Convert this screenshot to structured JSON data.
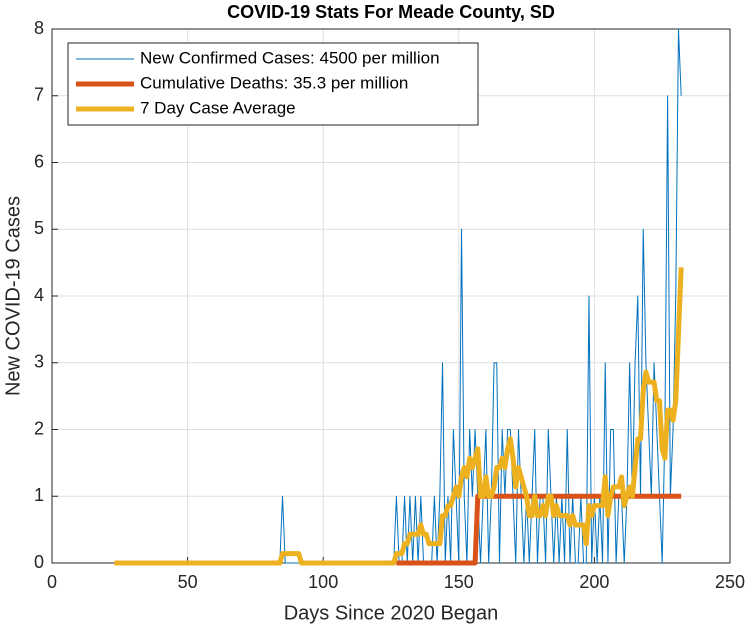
{
  "chart_data": {
    "type": "line",
    "title": "COVID-19 Stats For Meade County, SD",
    "x_label": "Days Since 2020 Began",
    "y_label": "New COVID-19 Cases",
    "x": [
      23,
      24,
      25,
      26,
      27,
      28,
      29,
      30,
      31,
      32,
      33,
      34,
      35,
      36,
      37,
      38,
      39,
      40,
      41,
      42,
      43,
      44,
      45,
      46,
      47,
      48,
      49,
      50,
      51,
      52,
      53,
      54,
      55,
      56,
      57,
      58,
      59,
      60,
      61,
      62,
      63,
      64,
      65,
      66,
      67,
      68,
      69,
      70,
      71,
      72,
      73,
      74,
      75,
      76,
      77,
      78,
      79,
      80,
      81,
      82,
      83,
      84,
      85,
      86,
      87,
      88,
      89,
      90,
      91,
      92,
      93,
      94,
      95,
      96,
      97,
      98,
      99,
      100,
      101,
      102,
      103,
      104,
      105,
      106,
      107,
      108,
      109,
      110,
      111,
      112,
      113,
      114,
      115,
      116,
      117,
      118,
      119,
      120,
      121,
      122,
      123,
      124,
      125,
      126,
      127,
      128,
      129,
      130,
      131,
      132,
      133,
      134,
      135,
      136,
      137,
      138,
      139,
      140,
      141,
      142,
      143,
      144,
      145,
      146,
      147,
      148,
      149,
      150,
      151,
      152,
      153,
      154,
      155,
      156,
      157,
      158,
      159,
      160,
      161,
      162,
      163,
      164,
      165,
      166,
      167,
      168,
      169,
      170,
      171,
      172,
      173,
      174,
      175,
      176,
      177,
      178,
      179,
      180,
      181,
      182,
      183,
      184,
      185,
      186,
      187,
      188,
      189,
      190,
      191,
      192,
      193,
      194,
      195,
      196,
      197,
      198,
      199,
      200,
      201,
      202,
      203,
      204,
      205,
      206,
      207,
      208,
      209,
      210,
      211,
      212,
      213,
      214,
      215,
      216,
      217,
      218,
      219,
      220,
      221,
      222,
      223,
      224,
      225,
      226,
      227,
      228,
      229,
      230,
      231,
      232
    ],
    "series": [
      {
        "name": "New Confirmed Cases: 4500 per million",
        "color": "#0072bd",
        "width": 1,
        "values": [
          0,
          0,
          0,
          0,
          0,
          0,
          0,
          0,
          0,
          0,
          0,
          0,
          0,
          0,
          0,
          0,
          0,
          0,
          0,
          0,
          0,
          0,
          0,
          0,
          0,
          0,
          0,
          0,
          0,
          0,
          0,
          0,
          0,
          0,
          0,
          0,
          0,
          0,
          0,
          0,
          0,
          0,
          0,
          0,
          0,
          0,
          0,
          0,
          0,
          0,
          0,
          0,
          0,
          0,
          0,
          0,
          0,
          0,
          0,
          0,
          0,
          0,
          1,
          0,
          0,
          0,
          0,
          0,
          0,
          0,
          0,
          0,
          0,
          0,
          0,
          0,
          0,
          0,
          0,
          0,
          0,
          0,
          0,
          0,
          0,
          0,
          0,
          0,
          0,
          0,
          0,
          0,
          0,
          0,
          0,
          0,
          0,
          0,
          0,
          0,
          0,
          0,
          0,
          0,
          1,
          0,
          0,
          1,
          0,
          1,
          0,
          1,
          0,
          1,
          0,
          0,
          0,
          0,
          1,
          0,
          1,
          3,
          0,
          1,
          0,
          2,
          1,
          0,
          5,
          1,
          0,
          2,
          1,
          2,
          1,
          0,
          1,
          2,
          0,
          1,
          3,
          3,
          0,
          2,
          1,
          2,
          2,
          1,
          0,
          2,
          1,
          0,
          1,
          0,
          1,
          2,
          0,
          1,
          1,
          0,
          2,
          1,
          0,
          1,
          0,
          1,
          0,
          2,
          0,
          1,
          0,
          0,
          1,
          0,
          0,
          4,
          0,
          1,
          0,
          1,
          0,
          3,
          0,
          2,
          2,
          0,
          1,
          1,
          0,
          1,
          3,
          1,
          3,
          4,
          1,
          5,
          3,
          2,
          1,
          3,
          2,
          1,
          0,
          2,
          7,
          1,
          2,
          4,
          8,
          7
        ]
      },
      {
        "name": "Cumulative Deaths: 35.3 per million",
        "color": "#d95319",
        "width": 5,
        "values": [
          null,
          null,
          null,
          null,
          null,
          null,
          null,
          null,
          null,
          null,
          null,
          null,
          null,
          null,
          null,
          null,
          null,
          null,
          null,
          null,
          null,
          null,
          null,
          null,
          null,
          null,
          null,
          null,
          null,
          null,
          null,
          null,
          null,
          null,
          null,
          null,
          null,
          null,
          null,
          null,
          null,
          null,
          null,
          null,
          null,
          null,
          null,
          null,
          null,
          null,
          null,
          null,
          null,
          null,
          null,
          null,
          null,
          null,
          null,
          null,
          null,
          null,
          null,
          null,
          null,
          null,
          null,
          null,
          null,
          null,
          null,
          null,
          null,
          null,
          null,
          null,
          null,
          null,
          null,
          null,
          null,
          null,
          null,
          null,
          null,
          null,
          null,
          null,
          null,
          null,
          null,
          null,
          null,
          null,
          null,
          null,
          null,
          null,
          null,
          null,
          null,
          null,
          null,
          null,
          0,
          0,
          0,
          0,
          0,
          0,
          0,
          0,
          0,
          0,
          0,
          0,
          0,
          0,
          0,
          0,
          0,
          0,
          0,
          0,
          0,
          0,
          0,
          0,
          0,
          0,
          0,
          0,
          0,
          0,
          1,
          1,
          1,
          1,
          1,
          1,
          1,
          1,
          1,
          1,
          1,
          1,
          1,
          1,
          1,
          1,
          1,
          1,
          1,
          1,
          1,
          1,
          1,
          1,
          1,
          1,
          1,
          1,
          1,
          1,
          1,
          1,
          1,
          1,
          1,
          1,
          1,
          1,
          1,
          1,
          1,
          1,
          1,
          1,
          1,
          1,
          1,
          1,
          1,
          1,
          1,
          1,
          1,
          1,
          1,
          1,
          1,
          1,
          1,
          1,
          1,
          1,
          1,
          1,
          1,
          1,
          1,
          1,
          1,
          1,
          1,
          1,
          1,
          1,
          1,
          1
        ]
      },
      {
        "name": "7 Day Case Average",
        "color": "#edb120",
        "width": 5,
        "values": [
          0,
          0,
          0,
          0,
          0,
          0,
          0,
          0,
          0,
          0,
          0,
          0,
          0,
          0,
          0,
          0,
          0,
          0,
          0,
          0,
          0,
          0,
          0,
          0,
          0,
          0,
          0,
          0,
          0,
          0,
          0,
          0,
          0,
          0,
          0,
          0,
          0,
          0,
          0,
          0,
          0,
          0,
          0,
          0,
          0,
          0,
          0,
          0,
          0,
          0,
          0,
          0,
          0,
          0,
          0,
          0,
          0,
          0,
          0,
          0,
          0,
          0,
          0.14,
          0.14,
          0.14,
          0.14,
          0.14,
          0.14,
          0.14,
          0,
          0,
          0,
          0,
          0,
          0,
          0,
          0,
          0,
          0,
          0,
          0,
          0,
          0,
          0,
          0,
          0,
          0,
          0,
          0,
          0,
          0,
          0,
          0,
          0,
          0,
          0,
          0,
          0,
          0,
          0,
          0,
          0,
          0,
          0,
          0.14,
          0.14,
          0.14,
          0.29,
          0.29,
          0.43,
          0.43,
          0.43,
          0.43,
          0.57,
          0.43,
          0.43,
          0.29,
          0.29,
          0.29,
          0.29,
          0.29,
          0.71,
          0.71,
          0.86,
          0.86,
          1,
          1.14,
          1,
          1.29,
          1.43,
          1.29,
          1.57,
          1.43,
          1.57,
          1.71,
          1,
          1,
          1.29,
          1,
          1,
          1.14,
          1.43,
          1.43,
          1.57,
          1.43,
          1.71,
          1.86,
          1.57,
          1.14,
          1.43,
          1.29,
          1.14,
          1,
          0.71,
          0.71,
          1,
          0.71,
          0.71,
          0.86,
          0.71,
          1,
          1,
          0.71,
          0.86,
          0.71,
          0.71,
          0.71,
          0.71,
          0.57,
          0.71,
          0.57,
          0.57,
          0.57,
          0.57,
          0.29,
          0.86,
          0.71,
          0.86,
          0.86,
          0.86,
          0.86,
          1.29,
          0.71,
          1,
          1.14,
          1.14,
          1.14,
          1.29,
          0.86,
          1,
          1.14,
          1,
          1.43,
          1.86,
          1.86,
          2.57,
          2.86,
          2.71,
          2.71,
          2.71,
          2.43,
          2.43,
          1.71,
          1.57,
          2.29,
          2.29,
          2.14,
          2.43,
          3.43,
          4.43
        ]
      }
    ],
    "xlim": [
      0,
      250
    ],
    "xticks": [
      0,
      50,
      100,
      150,
      200,
      250
    ],
    "ylim": [
      0,
      8
    ],
    "yticks": [
      0,
      1,
      2,
      3,
      4,
      5,
      6,
      7,
      8
    ],
    "grid": true,
    "legend": "top-left"
  }
}
